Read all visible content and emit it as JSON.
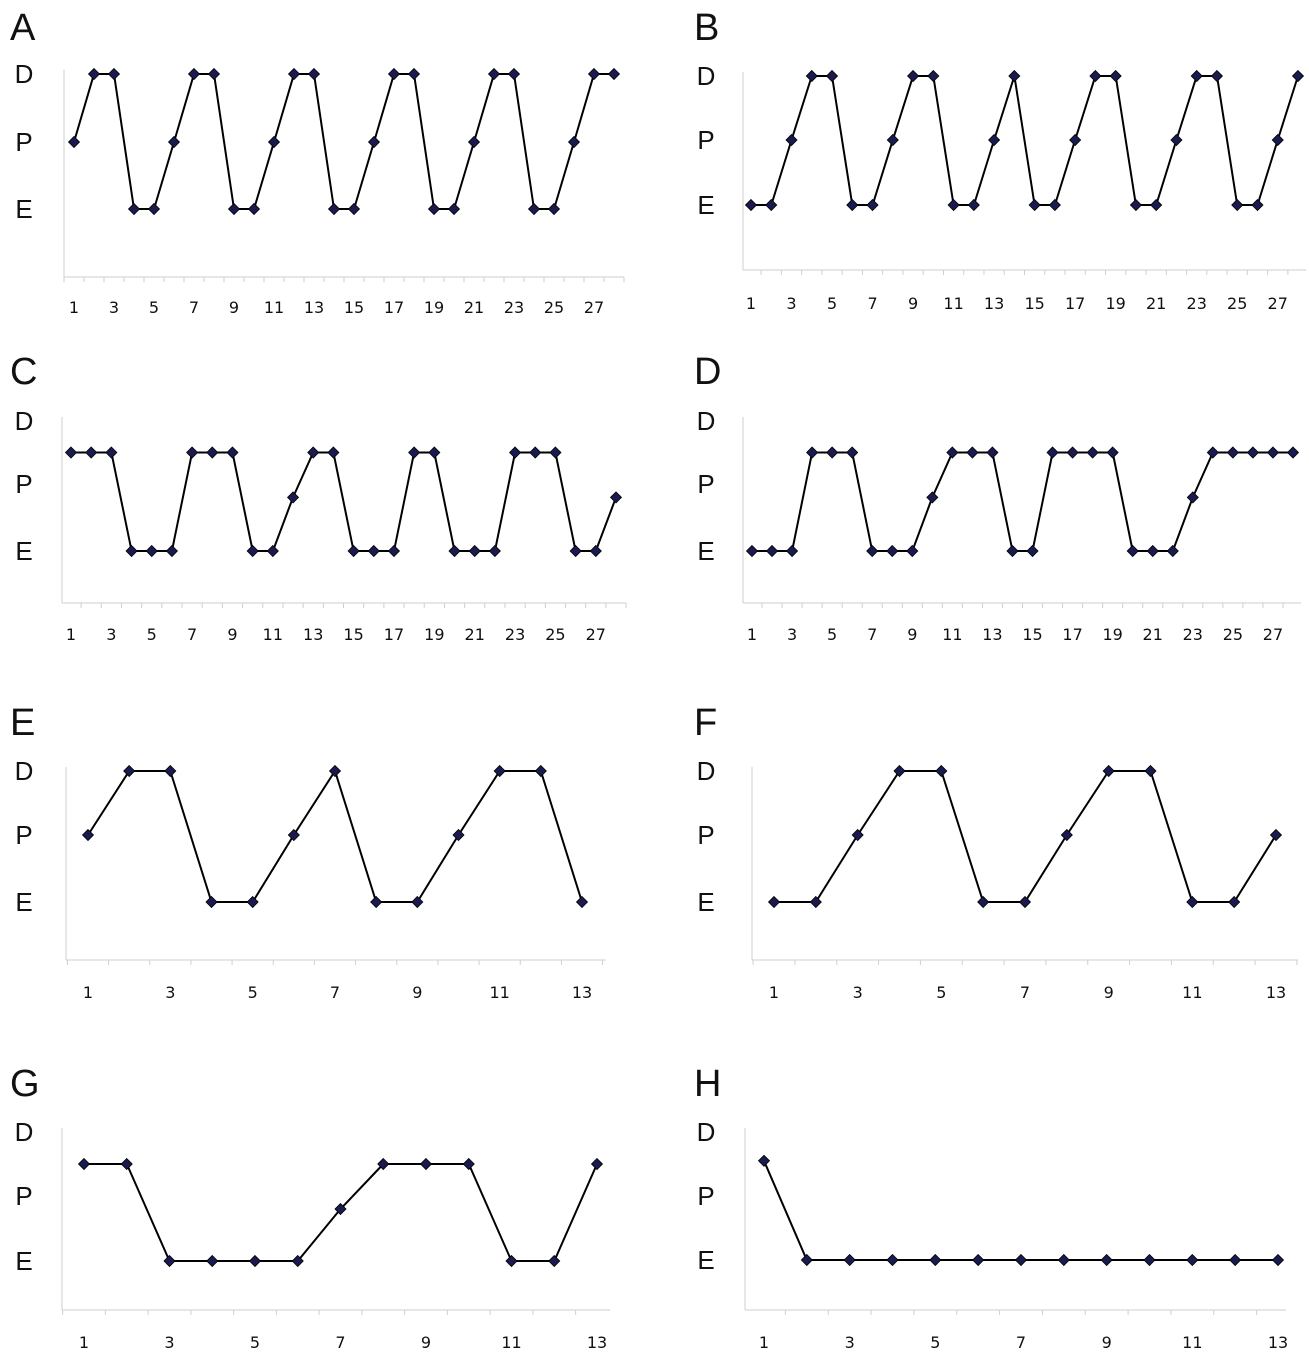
{
  "chart_data": [
    {
      "type": "line",
      "panel": "A",
      "y_categories": [
        "E",
        "P",
        "D"
      ],
      "x": [
        1,
        2,
        3,
        4,
        5,
        6,
        7,
        8,
        9,
        10,
        11,
        12,
        13,
        14,
        15,
        16,
        17,
        18,
        19,
        20,
        21,
        22,
        23,
        24,
        25,
        26,
        27,
        28
      ],
      "values": [
        2,
        3,
        3,
        1,
        1,
        2,
        3,
        3,
        1,
        1,
        2,
        3,
        3,
        1,
        1,
        2,
        3,
        3,
        1,
        1,
        2,
        3,
        3,
        1,
        1,
        2,
        3,
        3
      ],
      "x_tick_labels": [
        "1",
        "3",
        "5",
        "7",
        "9",
        "11",
        "13",
        "15",
        "17",
        "19",
        "21",
        "23",
        "25",
        "27"
      ],
      "xlim": [
        1,
        28
      ]
    },
    {
      "type": "line",
      "panel": "B",
      "y_categories": [
        "E",
        "P",
        "D"
      ],
      "x": [
        1,
        2,
        3,
        4,
        5,
        6,
        7,
        8,
        9,
        10,
        11,
        12,
        13,
        14,
        15,
        16,
        17,
        18,
        19,
        20,
        21,
        22,
        23,
        24,
        25,
        26,
        27,
        28
      ],
      "values": [
        1,
        1,
        2,
        3,
        3,
        1,
        1,
        2,
        3,
        3,
        1,
        1,
        2,
        3,
        1,
        1,
        2,
        3,
        3,
        1,
        1,
        2,
        3,
        3,
        1,
        1,
        2,
        3
      ],
      "x_tick_labels": [
        "1",
        "3",
        "5",
        "7",
        "9",
        "11",
        "13",
        "15",
        "17",
        "19",
        "21",
        "23",
        "25",
        "27"
      ],
      "xlim": [
        1,
        28
      ]
    },
    {
      "type": "line",
      "panel": "C",
      "y_categories": [
        "E",
        "P",
        "D"
      ],
      "x": [
        1,
        2,
        3,
        4,
        5,
        6,
        7,
        8,
        9,
        10,
        11,
        12,
        13,
        14,
        15,
        16,
        17,
        18,
        19,
        20,
        21,
        22,
        23,
        24,
        25,
        26,
        27,
        28
      ],
      "values": [
        2.5,
        2.5,
        2.5,
        1,
        1,
        1,
        2.5,
        2.5,
        2.5,
        1,
        1,
        1.8,
        2.5,
        2.5,
        1,
        1,
        1,
        2.5,
        2.5,
        1,
        1,
        1,
        2.5,
        2.5,
        2.5,
        1,
        1,
        1.8
      ],
      "x_tick_labels": [
        "1",
        "3",
        "5",
        "7",
        "9",
        "11",
        "13",
        "15",
        "17",
        "19",
        "21",
        "23",
        "25",
        "27"
      ],
      "xlim": [
        1,
        28
      ]
    },
    {
      "type": "line",
      "panel": "D",
      "y_categories": [
        "E",
        "P",
        "D"
      ],
      "x": [
        1,
        2,
        3,
        4,
        5,
        6,
        7,
        8,
        9,
        10,
        11,
        12,
        13,
        14,
        15,
        16,
        17,
        18,
        19,
        20,
        21,
        22,
        23,
        24,
        25,
        26,
        27,
        28
      ],
      "values": [
        1,
        1,
        1,
        2.5,
        2.5,
        2.5,
        1,
        1,
        1,
        1.8,
        2.5,
        2.5,
        2.5,
        1,
        1,
        2.5,
        2.5,
        2.5,
        2.5,
        1,
        1,
        1,
        1.8,
        2.5,
        2.5,
        2.5,
        2.5,
        2.5
      ],
      "x_tick_labels": [
        "1",
        "3",
        "5",
        "7",
        "9",
        "11",
        "13",
        "15",
        "17",
        "19",
        "21",
        "23",
        "25",
        "27"
      ],
      "xlim": [
        1,
        28
      ]
    },
    {
      "type": "line",
      "panel": "E",
      "y_categories": [
        "E",
        "P",
        "D"
      ],
      "x": [
        1,
        2,
        3,
        4,
        5,
        6,
        7,
        8,
        9,
        10,
        11,
        12,
        13
      ],
      "values": [
        2,
        3,
        3,
        1,
        1,
        2,
        3,
        1,
        1,
        2,
        3,
        3,
        1
      ],
      "x_tick_labels": [
        "1",
        "3",
        "5",
        "7",
        "9",
        "11",
        "13"
      ],
      "xlim": [
        1,
        13
      ]
    },
    {
      "type": "line",
      "panel": "F",
      "y_categories": [
        "E",
        "P",
        "D"
      ],
      "x": [
        1,
        2,
        3,
        4,
        5,
        6,
        7,
        8,
        9,
        10,
        11,
        12,
        13
      ],
      "values": [
        1,
        1,
        2,
        3,
        3,
        1,
        1,
        2,
        3,
        3,
        1,
        1,
        2
      ],
      "x_tick_labels": [
        "1",
        "3",
        "5",
        "7",
        "9",
        "11",
        "13"
      ],
      "xlim": [
        1,
        13
      ]
    },
    {
      "type": "line",
      "panel": "G",
      "y_categories": [
        "E",
        "P",
        "D"
      ],
      "x": [
        1,
        2,
        3,
        4,
        5,
        6,
        7,
        8,
        9,
        10,
        11,
        12,
        13
      ],
      "values": [
        2.5,
        2.5,
        1,
        1,
        1,
        1,
        1.8,
        2.5,
        2.5,
        2.5,
        1,
        1,
        2.5
      ],
      "x_tick_labels": [
        "1",
        "3",
        "5",
        "7",
        "9",
        "11",
        "13"
      ],
      "xlim": [
        1,
        13
      ]
    },
    {
      "type": "line",
      "panel": "H",
      "y_categories": [
        "E",
        "P",
        "D"
      ],
      "x": [
        1,
        2,
        3,
        4,
        5,
        6,
        7,
        8,
        9,
        10,
        11,
        12,
        13
      ],
      "values": [
        2.55,
        1,
        1,
        1,
        1,
        1,
        1,
        1,
        1,
        1,
        1,
        1,
        1
      ],
      "x_tick_labels": [
        "1",
        "3",
        "5",
        "7",
        "9",
        "11",
        "13"
      ],
      "xlim": [
        1,
        13
      ]
    }
  ]
}
